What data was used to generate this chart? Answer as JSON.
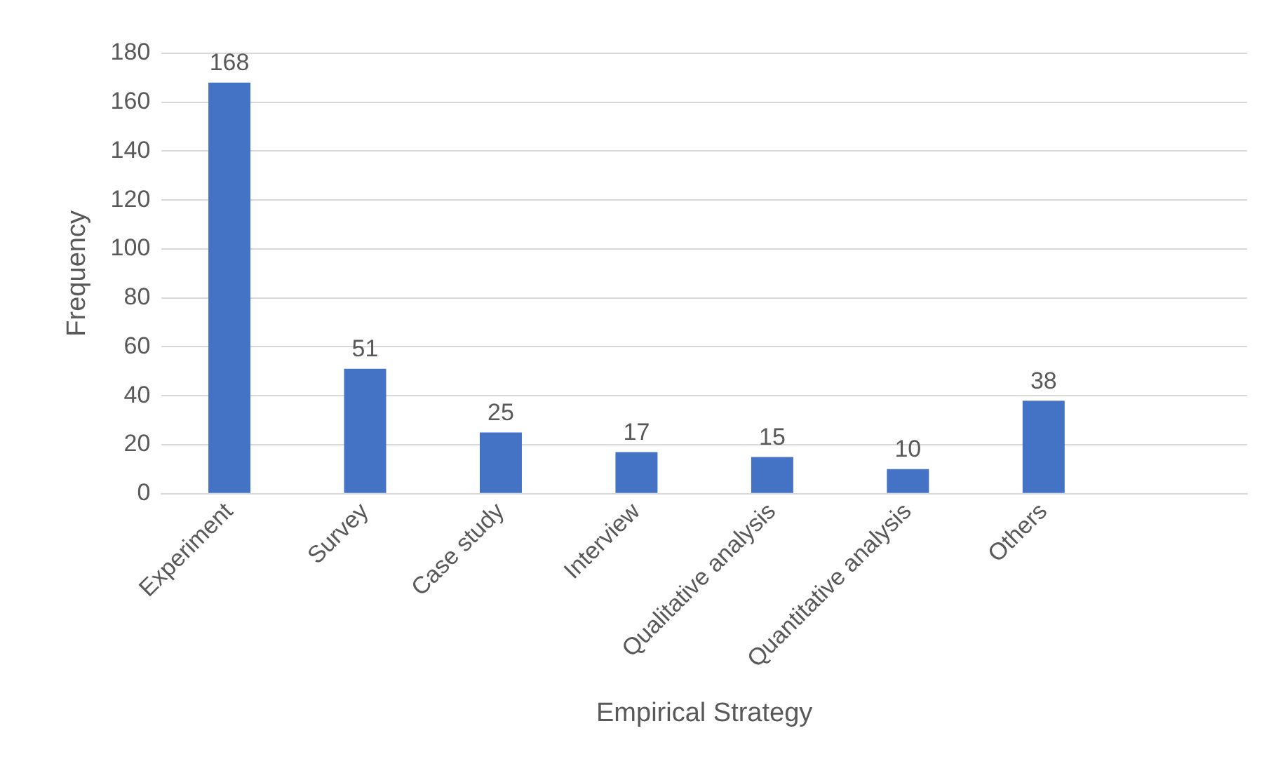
{
  "chart_data": {
    "type": "bar",
    "xlabel": "Empirical Strategy",
    "ylabel": "Frequency",
    "categories": [
      "Experiment",
      "Survey",
      "Case study",
      "Interview",
      "Qualitative analysis",
      "Quantitative analysis",
      "Others",
      null
    ],
    "values": [
      168,
      51,
      25,
      17,
      15,
      10,
      38,
      null
    ],
    "color": "#4472c4",
    "ylim": [
      0,
      180
    ],
    "yticks": [
      0,
      20,
      40,
      60,
      80,
      100,
      120,
      140,
      160,
      180
    ],
    "grid": "y",
    "data_labels": true,
    "legend": false
  }
}
